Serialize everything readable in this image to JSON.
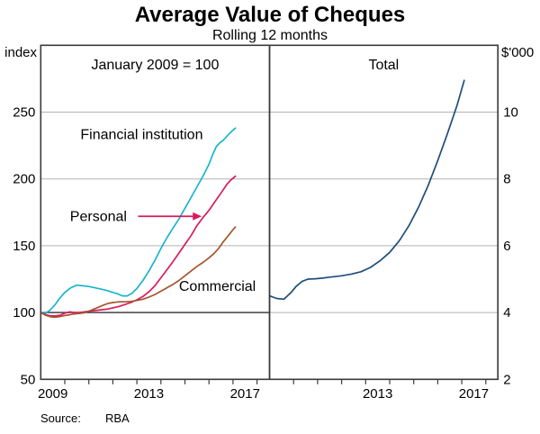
{
  "title": "Average Value of Cheques",
  "subtitle": "Rolling 12 months",
  "source": {
    "label": "Source:",
    "value": "RBA"
  },
  "axes": {
    "left_unit": "index",
    "right_unit": "$'000"
  },
  "colors": {
    "financial_institution": "#1ab5cd",
    "personal": "#d81b5f",
    "commercial": "#a5552e",
    "total": "#1f4e7a",
    "frame": "#3a3a3a",
    "gridline": "#b3b3b3",
    "reference_line": "#333333"
  },
  "chart_data": [
    {
      "type": "line",
      "panel": "left",
      "panel_label": "January 2009 = 100",
      "y_axis": {
        "side": "left",
        "unit": "index",
        "ylim": [
          50,
          300
        ],
        "ticks": [
          50,
          100,
          150,
          200,
          250
        ]
      },
      "x_axis": {
        "xlim": [
          2009,
          2018.5
        ],
        "tick_years": [
          2010,
          2011,
          2012,
          2013,
          2014,
          2015,
          2016,
          2017,
          2018
        ],
        "labels": [
          {
            "text": "2009",
            "year": 2009.5
          },
          {
            "text": "2013",
            "year": 2013.5
          },
          {
            "text": "2017",
            "year": 2017.5
          }
        ]
      },
      "reference_line": 100,
      "grid": true,
      "series": [
        {
          "name": "Financial institution",
          "color": "#1ab5cd",
          "label": {
            "text": "Financial institution",
            "x": 2013.2,
            "y": 233
          },
          "x": [
            2009.0,
            2009.2,
            2009.4,
            2009.6,
            2009.8,
            2010.0,
            2010.25,
            2010.5,
            2010.75,
            2011.0,
            2011.25,
            2011.5,
            2011.75,
            2012.0,
            2012.2,
            2012.4,
            2012.6,
            2012.8,
            2013.0,
            2013.25,
            2013.5,
            2013.75,
            2014.0,
            2014.25,
            2014.5,
            2014.75,
            2015.0,
            2015.25,
            2015.5,
            2015.75,
            2016.0,
            2016.15,
            2016.3,
            2016.45,
            2016.6,
            2016.8,
            2017.0,
            2017.1
          ],
          "values": [
            100,
            99.5,
            102,
            106,
            111,
            115,
            118.5,
            120.5,
            120,
            119.5,
            118.5,
            117.5,
            116.5,
            115,
            114,
            112.5,
            112.5,
            114.5,
            118,
            124,
            131,
            139,
            148,
            156,
            163,
            170,
            178,
            186,
            194,
            202,
            211,
            218,
            224,
            227,
            229,
            233,
            236.5,
            238
          ]
        },
        {
          "name": "Personal",
          "color": "#d81b5f",
          "label": {
            "text": "Personal",
            "x": 2011.4,
            "y": 172,
            "arrow": {
              "from_x": 2013.05,
              "to_x": 2015.7,
              "y": 172
            }
          },
          "x": [
            2009.0,
            2009.2,
            2009.4,
            2009.6,
            2009.8,
            2010.0,
            2010.2,
            2010.4,
            2010.6,
            2010.8,
            2011.0,
            2011.25,
            2011.5,
            2011.75,
            2012.0,
            2012.25,
            2012.5,
            2012.75,
            2013.0,
            2013.25,
            2013.5,
            2013.75,
            2014.0,
            2014.25,
            2014.5,
            2014.75,
            2015.0,
            2015.25,
            2015.5,
            2015.75,
            2016.0,
            2016.25,
            2016.5,
            2016.75,
            2016.9,
            2017.1
          ],
          "values": [
            100,
            98.5,
            97.5,
            97.5,
            98,
            99.5,
            100.5,
            100,
            100,
            100.5,
            101,
            101.5,
            102,
            102.5,
            103.5,
            104.5,
            106,
            107.5,
            109.5,
            112,
            115.5,
            120,
            126,
            132,
            138,
            144.5,
            151,
            157.5,
            165,
            171,
            176.5,
            183,
            189.5,
            196,
            199,
            202
          ]
        },
        {
          "name": "Commercial",
          "color": "#a5552e",
          "label": {
            "text": "Commercial",
            "x": 2016.35,
            "y": 119.5
          },
          "x": [
            2009.0,
            2009.2,
            2009.4,
            2009.6,
            2009.8,
            2010.0,
            2010.2,
            2010.4,
            2010.6,
            2010.8,
            2011.0,
            2011.2,
            2011.4,
            2011.6,
            2011.8,
            2012.0,
            2012.25,
            2012.5,
            2012.75,
            2013.0,
            2013.25,
            2013.5,
            2013.75,
            2014.0,
            2014.25,
            2014.5,
            2014.75,
            2015.0,
            2015.25,
            2015.5,
            2015.75,
            2016.0,
            2016.2,
            2016.4,
            2016.6,
            2016.8,
            2017.0,
            2017.1
          ],
          "values": [
            100,
            98,
            96.8,
            96.5,
            97,
            97.8,
            98.3,
            99,
            99.3,
            99.8,
            101,
            102.5,
            104,
            105.5,
            106.8,
            107.5,
            108,
            108,
            108.3,
            109,
            110,
            111.5,
            113.5,
            116,
            118.5,
            121,
            124,
            127.5,
            131,
            134.5,
            137.5,
            141,
            144,
            148,
            153,
            157.5,
            162,
            164
          ]
        }
      ]
    },
    {
      "type": "line",
      "panel": "right",
      "panel_label": "Total",
      "y_axis": {
        "side": "right",
        "unit": "$'000",
        "ylim": [
          2,
          12
        ],
        "ticks": [
          2,
          4,
          6,
          8,
          10
        ]
      },
      "x_axis": {
        "xlim": [
          2009,
          2018.5
        ],
        "tick_years": [
          2010,
          2011,
          2012,
          2013,
          2014,
          2015,
          2016,
          2017,
          2018
        ],
        "labels": [
          {
            "text": "2013",
            "year": 2013.5
          },
          {
            "text": "2017",
            "year": 2017.5
          }
        ]
      },
      "reference_line": null,
      "grid": true,
      "series": [
        {
          "name": "Total",
          "color": "#1f4e7a",
          "label": null,
          "x": [
            2009.0,
            2009.3,
            2009.6,
            2009.9,
            2010.1,
            2010.35,
            2010.6,
            2010.9,
            2011.2,
            2011.5,
            2012.0,
            2012.4,
            2012.8,
            2013.2,
            2013.6,
            2014.0,
            2014.4,
            2014.8,
            2015.2,
            2015.6,
            2016.0,
            2016.4,
            2016.8,
            2017.1
          ],
          "values": [
            4.5,
            4.42,
            4.4,
            4.6,
            4.78,
            4.93,
            5.0,
            5.01,
            5.03,
            5.06,
            5.1,
            5.15,
            5.22,
            5.35,
            5.55,
            5.8,
            6.15,
            6.6,
            7.15,
            7.8,
            8.55,
            9.35,
            10.2,
            10.95
          ]
        }
      ]
    }
  ]
}
